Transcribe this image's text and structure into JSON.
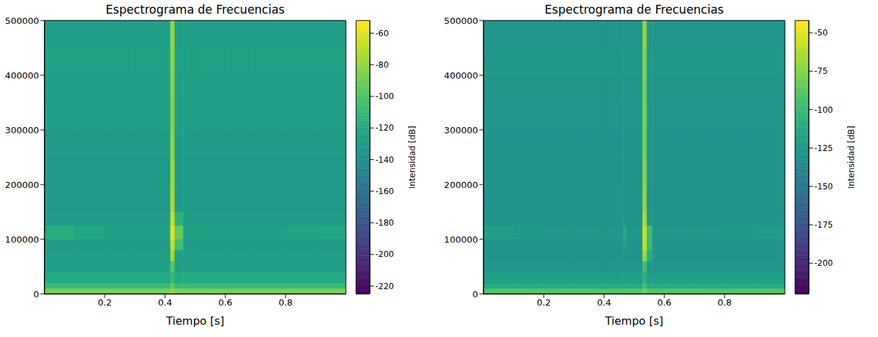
{
  "chart_data": [
    {
      "type": "heatmap",
      "title": "Espectrograma de Frecuencias",
      "x_label": "Tiempo [s]",
      "xlim": [
        0,
        1
      ],
      "xticks": [
        0.2,
        0.4,
        0.6,
        0.8
      ],
      "ylim": [
        0,
        500000
      ],
      "yticks": [
        0,
        100000,
        200000,
        300000,
        400000,
        500000
      ],
      "x_edges": [
        0,
        0.1,
        0.2,
        0.3,
        0.4,
        0.418,
        0.432,
        0.46,
        0.5,
        0.6,
        0.7,
        0.8,
        0.9,
        1
      ],
      "y_edges": [
        0,
        10000,
        20000,
        40000,
        60000,
        80000,
        100000,
        125000,
        150000,
        200000,
        250000,
        300000,
        350000,
        400000,
        450000,
        500000
      ],
      "cells": [
        [
          -88,
          -88,
          -88,
          -88,
          -88,
          -80,
          -88,
          -88,
          -88,
          -88,
          -88,
          -88,
          -88
        ],
        [
          -108,
          -108,
          -108,
          -108,
          -108,
          -95,
          -108,
          -108,
          -108,
          -108,
          -108,
          -108,
          -108
        ],
        [
          -120,
          -120,
          -120,
          -120,
          -120,
          -110,
          -120,
          -120,
          -120,
          -120,
          -120,
          -120,
          -120
        ],
        [
          -128,
          -128,
          -128,
          -128,
          -128,
          -100,
          -128,
          -128,
          -128,
          -128,
          -128,
          -128,
          -128
        ],
        [
          -128,
          -128,
          -128,
          -128,
          -128,
          -75,
          -128,
          -128,
          -128,
          -128,
          -128,
          -128,
          -128
        ],
        [
          -130,
          -130,
          -130,
          -130,
          -130,
          -68,
          -105,
          -130,
          -130,
          -130,
          -130,
          -130,
          -130
        ],
        [
          -118,
          -122,
          -126,
          -126,
          -126,
          -60,
          -92,
          -126,
          -126,
          -126,
          -126,
          -124,
          -122
        ],
        [
          -130,
          -130,
          -130,
          -130,
          -130,
          -68,
          -115,
          -130,
          -130,
          -130,
          -130,
          -130,
          -130
        ],
        [
          -131,
          -131,
          -131,
          -131,
          -131,
          -75,
          -131,
          -131,
          -131,
          -131,
          -131,
          -131,
          -131
        ],
        [
          -131,
          -131,
          -131,
          -131,
          -131,
          -78,
          -131,
          -131,
          -131,
          -131,
          -131,
          -131,
          -131
        ],
        [
          -130,
          -130,
          -130,
          -130,
          -130,
          -82,
          -130,
          -130,
          -130,
          -130,
          -130,
          -130,
          -130
        ],
        [
          -128,
          -128,
          -128,
          -128,
          -128,
          -84,
          -128,
          -128,
          -128,
          -128,
          -128,
          -128,
          -128
        ],
        [
          -127,
          -127,
          -127,
          -127,
          -127,
          -84,
          -127,
          -127,
          -127,
          -127,
          -127,
          -127,
          -127
        ],
        [
          -126,
          -126,
          -126,
          -126,
          -126,
          -82,
          -126,
          -126,
          -126,
          -126,
          -126,
          -126,
          -126
        ],
        [
          -128,
          -128,
          -128,
          -128,
          -128,
          -80,
          -128,
          -128,
          -128,
          -128,
          -128,
          -128,
          -128
        ]
      ],
      "colorbar_label": "Intensidad [dB]",
      "colorbar_range": [
        -225,
        -52
      ],
      "colorbar_ticks": [
        -220,
        -200,
        -180,
        -160,
        -140,
        -120,
        -100,
        -80,
        -60
      ]
    },
    {
      "type": "heatmap",
      "title": "Espectrograma de Frecuencias",
      "x_label": "Tiempo [s]",
      "xlim": [
        0,
        1
      ],
      "xticks": [
        0.2,
        0.4,
        0.6,
        0.8
      ],
      "ylim": [
        0,
        500000
      ],
      "yticks": [
        0,
        100000,
        200000,
        300000,
        400000,
        500000
      ],
      "x_edges": [
        0,
        0.1,
        0.2,
        0.3,
        0.4,
        0.465,
        0.475,
        0.528,
        0.542,
        0.56,
        0.6,
        0.7,
        0.8,
        0.9,
        1
      ],
      "y_edges": [
        0,
        10000,
        20000,
        40000,
        60000,
        80000,
        100000,
        125000,
        150000,
        200000,
        250000,
        300000,
        350000,
        400000,
        450000,
        500000
      ],
      "cells": [
        [
          -90,
          -90,
          -90,
          -90,
          -90,
          -90,
          -90,
          -80,
          -90,
          -90,
          -90,
          -90,
          -90,
          -90
        ],
        [
          -110,
          -110,
          -110,
          -110,
          -110,
          -110,
          -110,
          -95,
          -110,
          -110,
          -110,
          -110,
          -110,
          -110
        ],
        [
          -120,
          -120,
          -120,
          -120,
          -120,
          -120,
          -120,
          -108,
          -120,
          -120,
          -120,
          -120,
          -120,
          -120
        ],
        [
          -127,
          -127,
          -127,
          -127,
          -127,
          -127,
          -127,
          -98,
          -127,
          -127,
          -127,
          -127,
          -127,
          -127
        ],
        [
          -128,
          -128,
          -128,
          -128,
          -128,
          -128,
          -128,
          -70,
          -110,
          -128,
          -128,
          -128,
          -128,
          -128
        ],
        [
          -129,
          -129,
          -129,
          -129,
          -129,
          -118,
          -129,
          -60,
          -100,
          -129,
          -129,
          -129,
          -129,
          -129
        ],
        [
          -120,
          -124,
          -126,
          -126,
          -126,
          -110,
          -126,
          -58,
          -98,
          -126,
          -126,
          -126,
          -124,
          -122
        ],
        [
          -128,
          -128,
          -128,
          -128,
          -128,
          -128,
          -128,
          -65,
          -128,
          -128,
          -128,
          -128,
          -128,
          -128
        ],
        [
          -129,
          -129,
          -129,
          -129,
          -129,
          -129,
          -129,
          -72,
          -129,
          -129,
          -129,
          -129,
          -129,
          -129
        ],
        [
          -128,
          -128,
          -128,
          -128,
          -128,
          -128,
          -128,
          -76,
          -128,
          -128,
          -128,
          -128,
          -128,
          -128
        ],
        [
          -128,
          -128,
          -128,
          -128,
          -128,
          -128,
          -128,
          -80,
          -128,
          -128,
          -128,
          -128,
          -128,
          -128
        ],
        [
          -127,
          -127,
          -127,
          -127,
          -127,
          -127,
          -127,
          -80,
          -127,
          -127,
          -127,
          -127,
          -127,
          -127
        ],
        [
          -126,
          -126,
          -126,
          -126,
          -126,
          -126,
          -126,
          -80,
          -126,
          -126,
          -126,
          -126,
          -126,
          -126
        ],
        [
          -125,
          -125,
          -125,
          -125,
          -125,
          -125,
          -125,
          -78,
          -125,
          -125,
          -125,
          -125,
          -125,
          -125
        ],
        [
          -127,
          -127,
          -127,
          -127,
          -127,
          -127,
          -127,
          -72,
          -127,
          -127,
          -127,
          -127,
          -127,
          -127
        ]
      ],
      "colorbar_label": "Intensidad [dB]",
      "colorbar_range": [
        -220,
        -42
      ],
      "colorbar_ticks": [
        -200,
        -175,
        -150,
        -125,
        -100,
        -75,
        -50
      ]
    }
  ]
}
